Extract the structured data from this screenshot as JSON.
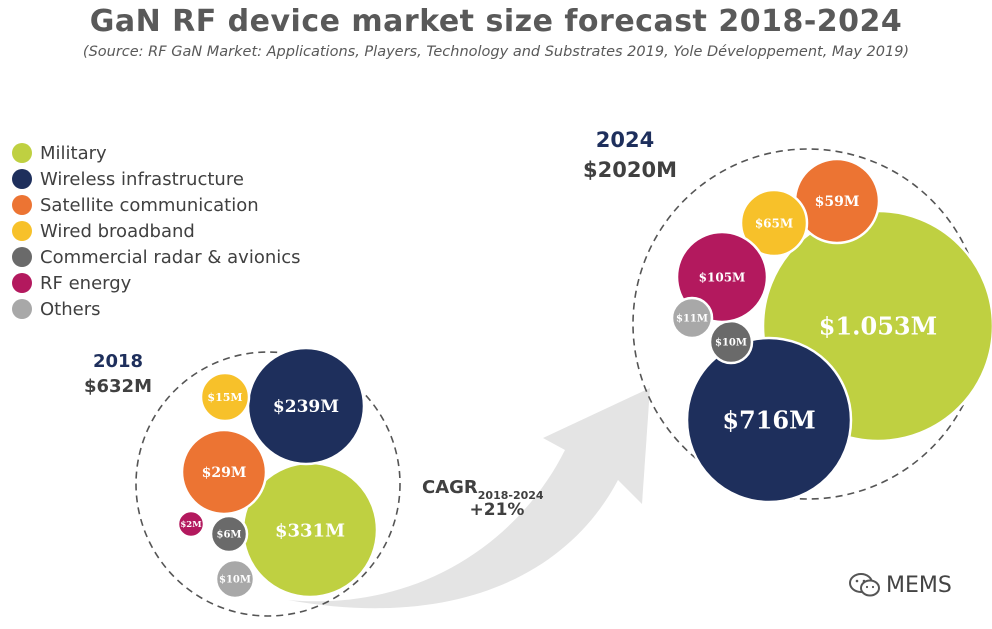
{
  "title": "GaN RF device market size forecast 2018-2024",
  "subtitle": "(Source: RF GaN Market: Applications, Players, Technology and Substrates 2019, Yole Développement, May 2019)",
  "watermark": "MEMS",
  "colors": {
    "Military": "#bfd041",
    "Wireless infrastructure": "#1e2f5c",
    "Satellite communication": "#ec7433",
    "Wired broadband": "#f7c12a",
    "Commercial radar & avionics": "#6a6a6a",
    "RF energy": "#b3195e",
    "Others": "#a8a8a8",
    "year_label": "#1e2f5c",
    "total_label": "#404040",
    "arrow": "#e4e4e4"
  },
  "chart_data": {
    "type": "bubble",
    "legend_position": "left",
    "categories": [
      "Military",
      "Wireless infrastructure",
      "Satellite communication",
      "Wired broadband",
      "Commercial radar & avionics",
      "RF energy",
      "Others"
    ],
    "groups": [
      {
        "year": "2018",
        "total_label": "$632M",
        "total": 632,
        "values": [
          {
            "category": "Military",
            "value": 331,
            "label": "$331M"
          },
          {
            "category": "Wireless infrastructure",
            "value": 239,
            "label": "$239M"
          },
          {
            "category": "Satellite communication",
            "value": 29,
            "label": "$29M"
          },
          {
            "category": "Wired broadband",
            "value": 15,
            "label": "$15M"
          },
          {
            "category": "Commercial radar & avionics",
            "value": 6,
            "label": "$6M"
          },
          {
            "category": "RF energy",
            "value": 2,
            "label": "$2M"
          },
          {
            "category": "Others",
            "value": 10,
            "label": "$10M"
          }
        ]
      },
      {
        "year": "2024",
        "total_label": "$2020M",
        "total": 2020,
        "values": [
          {
            "category": "Military",
            "value": 1053,
            "label": "$1.053M"
          },
          {
            "category": "Wireless infrastructure",
            "value": 716,
            "label": "$716M"
          },
          {
            "category": "Satellite communication",
            "value": 59,
            "label": "$59M"
          },
          {
            "category": "Wired broadband",
            "value": 65,
            "label": "$65M"
          },
          {
            "category": "Commercial radar & avionics",
            "value": 10,
            "label": "$10M"
          },
          {
            "category": "RF energy",
            "value": 105,
            "label": "$105M"
          },
          {
            "category": "Others",
            "value": 11,
            "label": "$11M"
          }
        ]
      }
    ],
    "annotation": {
      "text": "CAGR",
      "subscript": "2018-2024",
      "value": "+21%"
    }
  }
}
